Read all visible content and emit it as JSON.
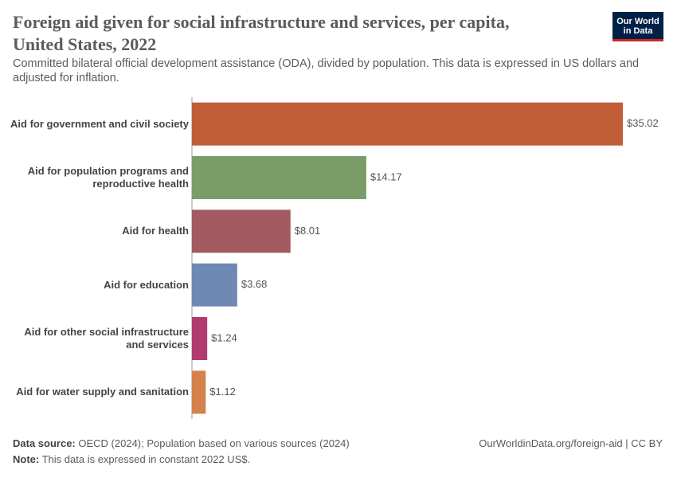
{
  "chart_data": {
    "type": "bar",
    "orientation": "horizontal",
    "title": "Foreign aid given for social infrastructure and services, per capita, United States, 2022",
    "subtitle": "Committed bilateral official development assistance (ODA), divided by population. This data is expressed in US dollars and adjusted for inflation.",
    "logo": "Our World in Data",
    "categories": [
      "Aid for government and civil society",
      "Aid for population programs and reproductive health",
      "Aid for health",
      "Aid for education",
      "Aid for other social infrastructure and services",
      "Aid for water supply and sanitation"
    ],
    "values": [
      35.02,
      14.17,
      8.01,
      3.68,
      1.24,
      1.12
    ],
    "value_labels": [
      "$35.02",
      "$14.17",
      "$8.01",
      "$3.68",
      "$1.24",
      "$1.12"
    ],
    "colors": [
      "#c15e38",
      "#7a9c69",
      "#a35a60",
      "#6f89b4",
      "#b23a6f",
      "#d5814b"
    ],
    "source_label": "Data source:",
    "source": "OECD (2024); Population based on various sources (2024)",
    "note_label": "Note:",
    "note": "This data is expressed in constant 2022 US$.",
    "url": "OurWorldinData.org/foreign-aid | CC BY"
  }
}
